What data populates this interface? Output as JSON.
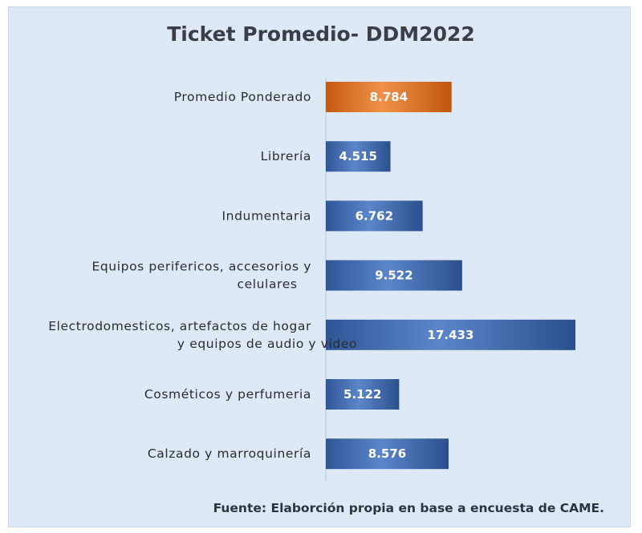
{
  "chart_data": {
    "type": "bar",
    "orientation": "horizontal",
    "title": "Ticket Promedio- DDM2022",
    "categories": [
      [
        "Promedio Ponderado"
      ],
      [
        "Librería"
      ],
      [
        "Indumentaria"
      ],
      [
        "Equipos perifericos, accesorios  y",
        "celulares"
      ],
      [
        "Electrodomesticos, artefactos de hogar",
        "y equipos de audio y video"
      ],
      [
        "Cosméticos y perfumeria"
      ],
      [
        "Calzado y marroquinería"
      ]
    ],
    "values": [
      8784,
      4515,
      6762,
      9522,
      17433,
      5122,
      8576
    ],
    "value_labels": [
      "8.784",
      "4.515",
      "6.762",
      "9.522",
      "17.433",
      "5.122",
      "8.576"
    ],
    "highlight_index": 0,
    "colors": {
      "highlight": "#d96a1f",
      "bar": "#3a62a8",
      "background": "#dde9f6"
    },
    "xlim": [
      0,
      20000
    ],
    "grid": false,
    "legend": "none"
  },
  "source": "Fuente: Elaborción propia en base a encuesta de CAME."
}
